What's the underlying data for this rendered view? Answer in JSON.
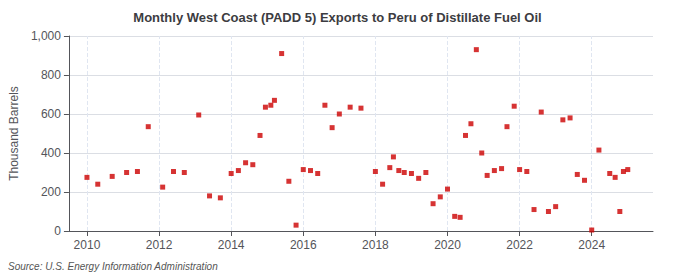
{
  "chart_data": {
    "type": "scatter",
    "title": "Monthly West Coast (PADD 5) Exports to Peru of Distillate Fuel Oil",
    "ylabel": "Thousand Barrels",
    "annotation": "Source: U.S. Energy Information Administration",
    "color": "#cc0000",
    "marker": "square",
    "grid": true,
    "xlim": [
      2009.5,
      2025.7
    ],
    "ylim": [
      0,
      1000
    ],
    "xticks": [
      2010,
      2012,
      2014,
      2016,
      2018,
      2020,
      2022,
      2024
    ],
    "yticks": [
      0,
      200,
      400,
      600,
      800,
      {
        "value": 1000,
        "label": "1,000"
      }
    ],
    "x": [
      2010.0,
      2010.3,
      2010.7,
      2011.1,
      2011.4,
      2011.7,
      2012.1,
      2012.4,
      2012.7,
      2013.1,
      2013.4,
      2013.7,
      2014.0,
      2014.2,
      2014.4,
      2014.6,
      2014.8,
      2014.95,
      2015.1,
      2015.2,
      2015.4,
      2015.6,
      2015.8,
      2016.0,
      2016.2,
      2016.4,
      2016.6,
      2016.8,
      2017.0,
      2017.3,
      2017.6,
      2018.0,
      2018.2,
      2018.4,
      2018.5,
      2018.65,
      2018.8,
      2019.0,
      2019.2,
      2019.4,
      2019.6,
      2019.8,
      2020.0,
      2020.2,
      2020.35,
      2020.5,
      2020.65,
      2020.8,
      2020.95,
      2021.1,
      2021.3,
      2021.5,
      2021.65,
      2021.85,
      2022.0,
      2022.2,
      2022.4,
      2022.6,
      2022.8,
      2023.0,
      2023.2,
      2023.4,
      2023.6,
      2023.8,
      2024.0,
      2024.2,
      2024.5,
      2024.65,
      2024.78,
      2024.88,
      2025.0
    ],
    "values": [
      275,
      240,
      280,
      300,
      305,
      535,
      225,
      305,
      300,
      595,
      180,
      170,
      295,
      310,
      350,
      340,
      490,
      635,
      645,
      670,
      910,
      255,
      30,
      315,
      310,
      295,
      645,
      530,
      600,
      635,
      630,
      305,
      240,
      325,
      380,
      310,
      300,
      295,
      270,
      300,
      140,
      175,
      215,
      75,
      70,
      490,
      550,
      930,
      400,
      285,
      310,
      320,
      535,
      640,
      315,
      305,
      110,
      610,
      100,
      125,
      570,
      580,
      290,
      260,
      5,
      415,
      295,
      275,
      100,
      305,
      315
    ]
  }
}
